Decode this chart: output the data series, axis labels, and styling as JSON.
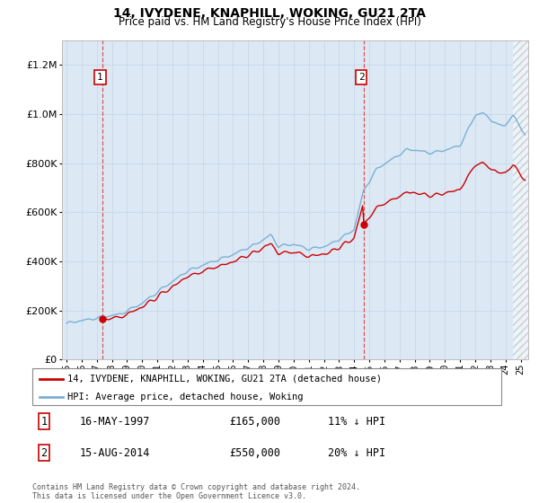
{
  "title": "14, IVYDENE, KNAPHILL, WOKING, GU21 2TA",
  "subtitle": "Price paid vs. HM Land Registry's House Price Index (HPI)",
  "hpi_color": "#7bafd4",
  "price_color": "#cc0000",
  "bg_color": "#dce9f5",
  "ylim": [
    0,
    1300000
  ],
  "xlim_start": 1994.7,
  "xlim_end": 2025.5,
  "transaction1_x": 1997.37,
  "transaction1_y": 165000,
  "transaction2_x": 2014.62,
  "transaction2_y": 550000,
  "legend_line1": "14, IVYDENE, KNAPHILL, WOKING, GU21 2TA (detached house)",
  "legend_line2": "HPI: Average price, detached house, Woking",
  "note1_date": "16-MAY-1997",
  "note1_price": "£165,000",
  "note1_hpi": "11% ↓ HPI",
  "note2_date": "15-AUG-2014",
  "note2_price": "£550,000",
  "note2_hpi": "20% ↓ HPI",
  "footer": "Contains HM Land Registry data © Crown copyright and database right 2024.\nThis data is licensed under the Open Government Licence v3.0."
}
